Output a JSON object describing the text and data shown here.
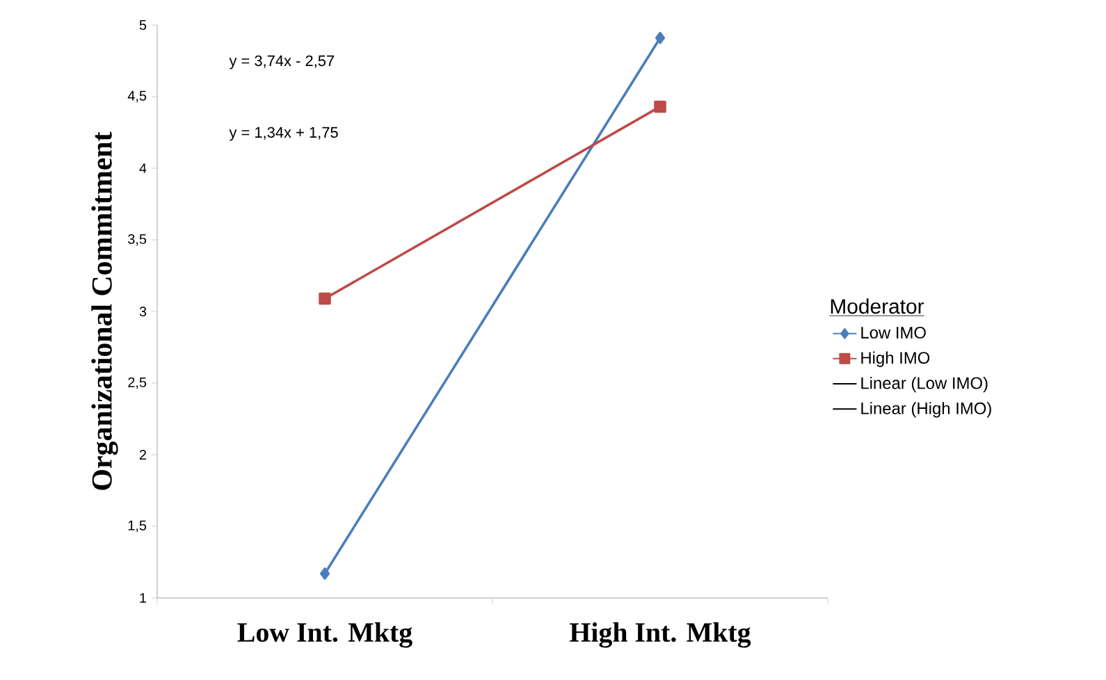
{
  "chart_data": {
    "type": "line",
    "ylabel": "Organizational Commitment",
    "legend_title": "Moderator",
    "legend": "right",
    "categories": [
      "Low Int. Mktg",
      "High Int. Mktg"
    ],
    "series": [
      {
        "name": "Low IMO",
        "color": "#4a7ebb",
        "marker": "diamond",
        "values": [
          1.17,
          4.91
        ]
      },
      {
        "name": "High IMO",
        "color": "#be4b48",
        "marker": "square",
        "values": [
          3.09,
          4.43
        ]
      },
      {
        "name": "Linear (Low IMO)",
        "color": "#000000",
        "marker": "none",
        "values": [
          null,
          null
        ]
      },
      {
        "name": "Linear (High IMO)",
        "color": "#000000",
        "marker": "none",
        "values": [
          null,
          null
        ]
      }
    ],
    "ylim": [
      1,
      5
    ],
    "yticks": [
      1,
      {
        "value": 1.5,
        "label": "1,5"
      },
      2,
      {
        "value": 2.5,
        "label": "2,5"
      },
      3,
      {
        "value": 3.5,
        "label": "3,5"
      },
      4,
      {
        "value": 4.5,
        "label": "4,5"
      },
      5
    ],
    "annotations": [
      "y = 3,74x - 2,57",
      "y = 1,34x + 1,75"
    ],
    "grid": false
  }
}
